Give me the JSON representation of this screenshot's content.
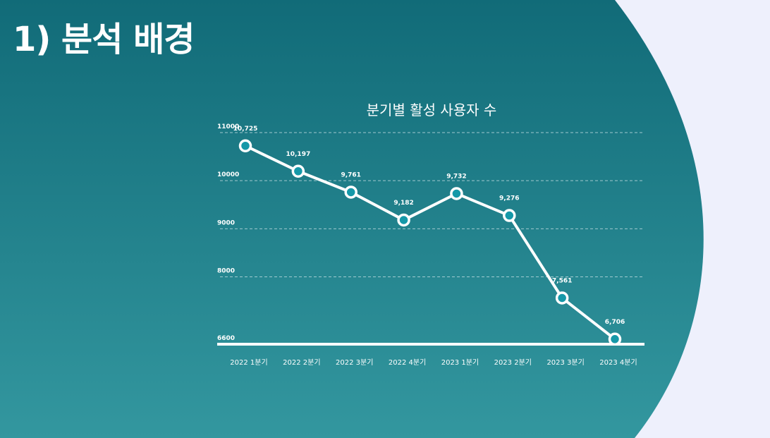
{
  "slide": {
    "title": "1) 분석 배경",
    "colors": {
      "background_light": "#eef0fc",
      "panel_top": "#116b78",
      "panel_bottom": "#33979f",
      "line": "#ffffff",
      "marker_fill": "#1598a8"
    }
  },
  "chart_data": {
    "type": "line",
    "title": "분기별 활성 사용자 수",
    "categories": [
      "2022 1분기",
      "2022 2분기",
      "2022 3분기",
      "2022 4분기",
      "2023 1분기",
      "2023 2분기",
      "2023 3분기",
      "2023 4분기"
    ],
    "series": [
      {
        "values": [
          10725,
          10197,
          9761,
          9182,
          9732,
          9276,
          7561,
          6706
        ]
      }
    ],
    "data_labels": [
      "10,725",
      "10,197",
      "9,761",
      "9,182",
      "9,732",
      "9,276",
      "7,561",
      "6,706"
    ],
    "yticks": [
      6600,
      8000,
      9000,
      10000,
      11000
    ],
    "ylim": [
      6600,
      11000
    ],
    "grid": true,
    "legend": "none"
  }
}
